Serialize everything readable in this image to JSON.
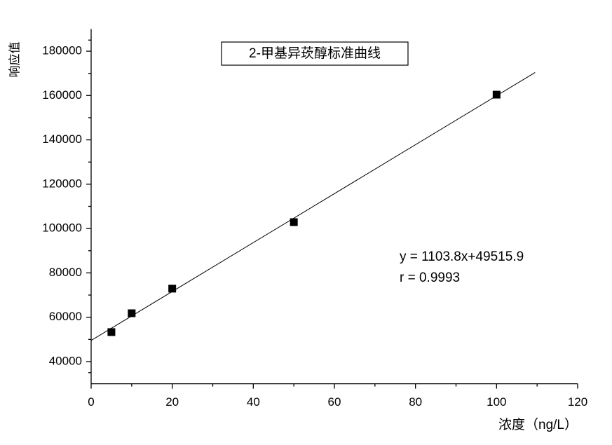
{
  "chart_data": {
    "type": "scatter",
    "title": "2-甲基异莰醇标准曲线",
    "xlabel": "浓度（ng/L）",
    "ylabel": "响应值",
    "annotations": [
      "y = 1103.8x+49515.9",
      "r = 0.9993"
    ],
    "x": [
      5,
      10,
      20,
      50,
      100
    ],
    "values": [
      53300,
      61800,
      72900,
      102900,
      160400
    ],
    "color": "#000000",
    "fit_line": {
      "x": [
        0,
        109.5
      ],
      "values": [
        49516,
        170380
      ],
      "color": "#000000"
    },
    "xlim": [
      0,
      120
    ],
    "xticks": [
      0,
      20,
      40,
      60,
      80,
      100,
      120
    ],
    "ylim": [
      30000,
      190000
    ],
    "yticks": [
      40000,
      60000,
      80000,
      100000,
      120000,
      140000,
      160000,
      180000
    ]
  }
}
